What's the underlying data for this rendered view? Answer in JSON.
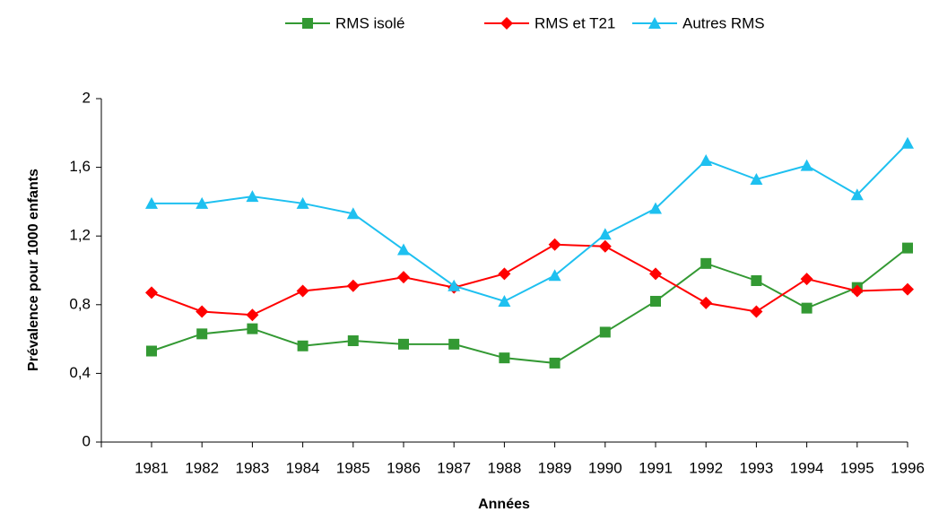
{
  "chart_data": {
    "type": "line",
    "xlabel": "Années",
    "ylabel": "Prévalence pour 1000 enfants",
    "categories": [
      "1981",
      "1982",
      "1983",
      "1984",
      "1985",
      "1986",
      "1987",
      "1988",
      "1989",
      "1990",
      "1991",
      "1992",
      "1993",
      "1994",
      "1995",
      "1996"
    ],
    "series": [
      {
        "name": "RMS isolé",
        "color": "#339933",
        "marker": "square",
        "values": [
          0.53,
          0.63,
          0.66,
          0.56,
          0.59,
          0.57,
          0.57,
          0.49,
          0.46,
          0.64,
          0.82,
          1.04,
          0.94,
          0.78,
          0.9,
          1.13
        ]
      },
      {
        "name": "RMS et T21",
        "color": "#ff0000",
        "marker": "diamond",
        "values": [
          0.87,
          0.76,
          0.74,
          0.88,
          0.91,
          0.96,
          0.9,
          0.98,
          1.15,
          1.14,
          0.98,
          0.81,
          0.76,
          0.95,
          0.88,
          0.89
        ]
      },
      {
        "name": "Autres RMS",
        "color": "#1ec0f0",
        "marker": "triangle",
        "values": [
          1.39,
          1.39,
          1.43,
          1.39,
          1.33,
          1.12,
          0.91,
          0.82,
          0.97,
          1.21,
          1.36,
          1.64,
          1.53,
          1.61,
          1.44,
          1.74
        ]
      }
    ],
    "ylim": [
      0,
      2
    ],
    "yticks": [
      0,
      {
        "value": 0.4,
        "label": "0,4"
      },
      {
        "value": 0.8,
        "label": "0,8"
      },
      {
        "value": 1.2,
        "label": "1,2"
      },
      {
        "value": 1.6,
        "label": "1,6"
      },
      2
    ],
    "legend": "top"
  }
}
